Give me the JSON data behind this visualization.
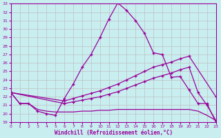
{
  "xlabel": "Windchill (Refroidissement éolien,°C)",
  "background_color": "#c8eef0",
  "grid_color": "#c0c0c0",
  "line_color": "#990099",
  "xlim": [
    0,
    23
  ],
  "ylim": [
    19,
    33
  ],
  "yticks": [
    19,
    20,
    21,
    22,
    23,
    24,
    25,
    26,
    27,
    28,
    29,
    30,
    31,
    32,
    33
  ],
  "xticks": [
    0,
    1,
    2,
    3,
    4,
    5,
    6,
    7,
    8,
    9,
    10,
    11,
    12,
    13,
    14,
    15,
    16,
    17,
    18,
    19,
    20,
    21,
    22,
    23
  ],
  "line1_x": [
    0,
    1,
    2,
    3,
    4,
    5,
    6,
    7,
    8,
    9,
    10,
    11,
    12,
    13,
    14,
    15,
    16,
    17,
    18,
    19,
    20,
    21,
    22,
    23
  ],
  "line1_y": [
    22.5,
    21.2,
    21.2,
    20.3,
    20.0,
    19.8,
    21.8,
    23.5,
    25.5,
    27.0,
    29.0,
    31.2,
    33.1,
    32.2,
    31.0,
    29.5,
    27.2,
    27.0,
    24.3,
    24.4,
    22.8,
    21.2,
    21.2,
    19.0
  ],
  "line2_x": [
    0,
    6,
    7,
    8,
    9,
    10,
    11,
    12,
    13,
    14,
    15,
    16,
    17,
    18,
    19,
    20,
    23
  ],
  "line2_y": [
    22.5,
    21.5,
    21.8,
    22.1,
    22.4,
    22.7,
    23.1,
    23.5,
    24.0,
    24.5,
    25.0,
    25.5,
    25.8,
    26.1,
    26.5,
    26.8,
    22.0
  ],
  "line3_x": [
    0,
    6,
    7,
    8,
    9,
    10,
    11,
    12,
    13,
    14,
    15,
    16,
    17,
    18,
    19,
    20,
    21,
    22,
    23
  ],
  "line3_y": [
    22.5,
    21.2,
    21.4,
    21.6,
    21.8,
    22.0,
    22.3,
    22.6,
    23.0,
    23.4,
    23.8,
    24.2,
    24.5,
    24.8,
    25.2,
    25.5,
    22.5,
    21.0,
    19.2
  ],
  "line4_x": [
    0,
    1,
    2,
    3,
    4,
    5,
    6,
    7,
    8,
    9,
    10,
    11,
    12,
    13,
    14,
    15,
    16,
    17,
    18,
    19,
    20,
    21,
    22,
    23
  ],
  "line4_y": [
    22.5,
    21.2,
    21.2,
    20.5,
    20.3,
    20.2,
    20.2,
    20.2,
    20.3,
    20.3,
    20.4,
    20.4,
    20.5,
    20.5,
    20.5,
    20.5,
    20.5,
    20.5,
    20.5,
    20.5,
    20.5,
    20.3,
    19.8,
    19.2
  ]
}
